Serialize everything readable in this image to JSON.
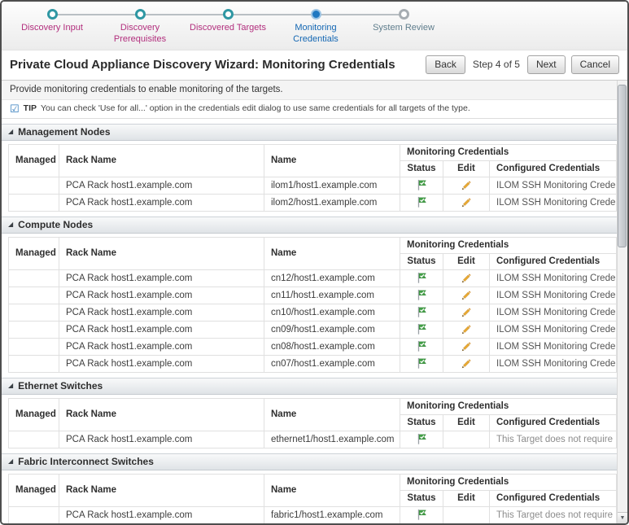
{
  "palette": {
    "magenta_step": "#b22e7d",
    "active_blue": "#1f78c1",
    "future_gray_blue": "#5f7d8c",
    "flag_green": "#43a047",
    "pencil_gold": "#eaaa33"
  },
  "stepper": {
    "steps": [
      {
        "label": "Discovery Input",
        "state": "done"
      },
      {
        "label": "Discovery Prerequisites",
        "state": "done"
      },
      {
        "label": "Discovered Targets",
        "state": "done"
      },
      {
        "label": "Monitoring Credentials",
        "state": "active"
      },
      {
        "label": "System Review",
        "state": "future"
      }
    ]
  },
  "header": {
    "title": "Private Cloud Appliance Discovery Wizard: Monitoring Credentials",
    "back_label": "Back",
    "step_indicator": "Step 4 of 5",
    "next_label": "Next",
    "cancel_label": "Cancel"
  },
  "intro": {
    "description": "Provide monitoring credentials to enable monitoring of the targets.",
    "tip_label": "TIP",
    "tip_text": "You can check 'Use for all...' option in the credentials edit dialog to use same credentials for all targets of the type."
  },
  "table_headers": {
    "managed": "Managed",
    "rack_name": "Rack Name",
    "name": "Name",
    "monitoring_credentials": "Monitoring Credentials",
    "status": "Status",
    "edit": "Edit",
    "configured_credentials": "Configured Credentials"
  },
  "sections": [
    {
      "title": "Management Nodes",
      "rows": [
        {
          "rack": "PCA Rack host1.example.com",
          "name": "ilom1/host1.example.com",
          "has_edit": true,
          "muted": false,
          "credentials": "ILOM SSH Monitoring Credent..."
        },
        {
          "rack": "PCA Rack host1.example.com",
          "name": "ilom2/host1.example.com",
          "has_edit": true,
          "muted": false,
          "credentials": "ILOM SSH Monitoring Credent..."
        }
      ]
    },
    {
      "title": "Compute Nodes",
      "rows": [
        {
          "rack": "PCA Rack host1.example.com",
          "name": "cn12/host1.example.com",
          "has_edit": true,
          "muted": false,
          "credentials": "ILOM SSH Monitoring Credent..."
        },
        {
          "rack": "PCA Rack host1.example.com",
          "name": "cn11/host1.example.com",
          "has_edit": true,
          "muted": false,
          "credentials": "ILOM SSH Monitoring Credent..."
        },
        {
          "rack": "PCA Rack host1.example.com",
          "name": "cn10/host1.example.com",
          "has_edit": true,
          "muted": false,
          "credentials": "ILOM SSH Monitoring Credent..."
        },
        {
          "rack": "PCA Rack host1.example.com",
          "name": "cn09/host1.example.com",
          "has_edit": true,
          "muted": false,
          "credentials": "ILOM SSH Monitoring Credent..."
        },
        {
          "rack": "PCA Rack host1.example.com",
          "name": "cn08/host1.example.com",
          "has_edit": true,
          "muted": false,
          "credentials": "ILOM SSH Monitoring Credent..."
        },
        {
          "rack": "PCA Rack host1.example.com",
          "name": "cn07/host1.example.com",
          "has_edit": true,
          "muted": false,
          "credentials": "ILOM SSH Monitoring Credent..."
        }
      ]
    },
    {
      "title": "Ethernet Switches",
      "rows": [
        {
          "rack": "PCA Rack host1.example.com",
          "name": "ethernet1/host1.example.com",
          "has_edit": false,
          "muted": true,
          "credentials": "This Target does not require ..."
        }
      ]
    },
    {
      "title": "Fabric Interconnect Switches",
      "rows": [
        {
          "rack": "PCA Rack host1.example.com",
          "name": "fabric1/host1.example.com",
          "has_edit": false,
          "muted": true,
          "credentials": "This Target does not require ..."
        }
      ]
    }
  ],
  "icons": {
    "status_icon_name": "green-flag-with-check",
    "edit_icon_name": "gold-pencil",
    "tip_check_glyph": "☑",
    "section_toggle_glyph": "◢",
    "scrollbar_down_glyph": "▼"
  }
}
